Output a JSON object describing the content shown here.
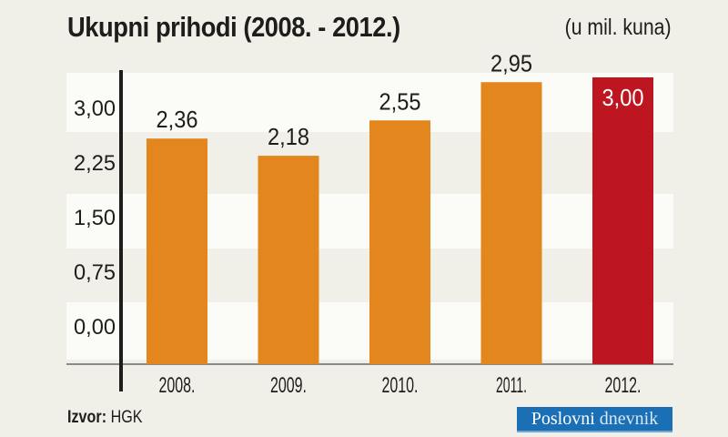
{
  "chart_data": {
    "type": "bar",
    "title": "Ukupni prihodi (2008. - 2012.)",
    "unit_label": "(u mil. kuna)",
    "categories": [
      "2008.",
      "2009.",
      "2010.",
      "2011.",
      "2012."
    ],
    "values": [
      2.36,
      2.18,
      2.55,
      2.95,
      3.0
    ],
    "value_labels": [
      "2,36",
      "2,18",
      "2,55",
      "2,95",
      "3,00"
    ],
    "y_ticks": [
      "0,00",
      "0,75",
      "1,50",
      "2,25",
      "3,00"
    ],
    "bar_colors": [
      "#e2861d",
      "#e2861d",
      "#e2861d",
      "#e2861d",
      "#bd1620"
    ],
    "grid": "alternating bands"
  },
  "source": {
    "label": "Izvor:",
    "value": "HGK"
  },
  "logo": {
    "part1": "Poslovni",
    "part2": "dnevnik"
  }
}
